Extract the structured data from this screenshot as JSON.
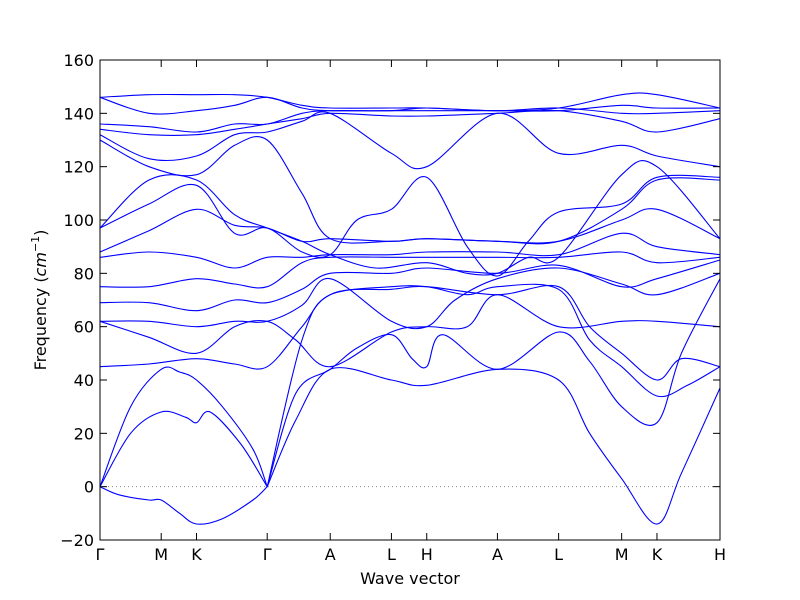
{
  "chart_data": {
    "type": "line",
    "title": "",
    "xlabel": "Wave vector",
    "ylabel": "Frequency (cm⁻¹)",
    "ylabel_main": "Frequency (",
    "ylabel_unit": "cm",
    "ylabel_exp": "−1",
    "ylabel_close": ")",
    "ylim": [
      -20,
      160
    ],
    "yticks": [
      -20,
      0,
      20,
      40,
      60,
      80,
      100,
      120,
      140,
      160
    ],
    "ytick_labels": [
      "−20",
      "0",
      "20",
      "40",
      "60",
      "80",
      "100",
      "120",
      "140",
      "160"
    ],
    "x_ticks": [
      {
        "label": "Γ",
        "x": 0.0
      },
      {
        "label": "M",
        "x": 1.0
      },
      {
        "label": "K",
        "x": 1.577
      },
      {
        "label": "Γ",
        "x": 2.732
      },
      {
        "label": "A",
        "x": 3.762
      },
      {
        "label": "L",
        "x": 4.762
      },
      {
        "label": "H",
        "x": 5.339
      },
      {
        "label": "A",
        "x": 6.494
      },
      {
        "label": "L",
        "x": 7.494
      },
      {
        "label": "M",
        "x": 8.524
      },
      {
        "label": "K",
        "x": 9.101
      },
      {
        "label": "H",
        "x": 10.131
      }
    ],
    "xlim": [
      0,
      10.131
    ],
    "zero_line": {
      "y": 0,
      "style": "dotted",
      "color": "#888888"
    },
    "line_color": "#0000ff",
    "grid": false,
    "legend": "none",
    "series": [
      {
        "values": [
          [
            0,
            0
          ],
          [
            0.3,
            -3
          ],
          [
            0.8,
            -5
          ],
          [
            1.0,
            -5
          ],
          [
            1.3,
            -10
          ],
          [
            1.577,
            -14
          ],
          [
            2.0,
            -12
          ],
          [
            2.5,
            -5
          ],
          [
            2.732,
            0
          ]
        ]
      },
      {
        "values": [
          [
            0,
            0
          ],
          [
            0.5,
            20
          ],
          [
            1.0,
            28
          ],
          [
            1.4,
            26
          ],
          [
            1.577,
            24
          ],
          [
            1.8,
            28
          ],
          [
            2.3,
            16
          ],
          [
            2.732,
            0
          ]
        ]
      },
      {
        "values": [
          [
            0,
            0
          ],
          [
            0.5,
            30
          ],
          [
            1.0,
            44
          ],
          [
            1.3,
            43
          ],
          [
            1.577,
            40
          ],
          [
            2.0,
            30
          ],
          [
            2.5,
            14
          ],
          [
            2.732,
            0
          ]
        ]
      },
      {
        "values": [
          [
            2.732,
            0
          ],
          [
            3.2,
            25
          ],
          [
            3.762,
            44
          ],
          [
            4.762,
            40
          ],
          [
            5.339,
            38
          ],
          [
            6.494,
            44
          ],
          [
            7.494,
            40
          ],
          [
            8.0,
            20
          ],
          [
            8.524,
            3
          ],
          [
            9.101,
            -14
          ],
          [
            9.5,
            5
          ],
          [
            10.131,
            37
          ]
        ]
      },
      {
        "values": [
          [
            2.732,
            0
          ],
          [
            3.2,
            35
          ],
          [
            3.762,
            44
          ],
          [
            4.2,
            52
          ],
          [
            4.762,
            57
          ],
          [
            5.1,
            48
          ],
          [
            5.339,
            45
          ],
          [
            5.6,
            57
          ],
          [
            6.494,
            44
          ],
          [
            7.494,
            58
          ],
          [
            8.0,
            47
          ],
          [
            8.524,
            30
          ],
          [
            9.101,
            24
          ],
          [
            9.5,
            50
          ],
          [
            10.131,
            78
          ]
        ]
      },
      {
        "values": [
          [
            2.732,
            0
          ],
          [
            3.3,
            55
          ],
          [
            3.762,
            72
          ],
          [
            4.762,
            74
          ],
          [
            5.339,
            75
          ],
          [
            6.494,
            72
          ],
          [
            7.494,
            75
          ],
          [
            8.0,
            60
          ],
          [
            8.524,
            50
          ],
          [
            9.101,
            40
          ],
          [
            9.5,
            48
          ],
          [
            10.131,
            45
          ]
        ]
      },
      {
        "values": [
          [
            0,
            45
          ],
          [
            0.8,
            46
          ],
          [
            1.577,
            48
          ],
          [
            2.2,
            46
          ],
          [
            2.732,
            45
          ],
          [
            3.3,
            60
          ],
          [
            3.762,
            72
          ],
          [
            4.762,
            75
          ],
          [
            5.339,
            75
          ],
          [
            6.0,
            72
          ],
          [
            6.494,
            75
          ],
          [
            7.494,
            74
          ],
          [
            8.0,
            55
          ],
          [
            8.524,
            45
          ],
          [
            9.101,
            34
          ],
          [
            9.6,
            38
          ],
          [
            10.131,
            45
          ]
        ]
      },
      {
        "values": [
          [
            0,
            62
          ],
          [
            0.8,
            56
          ],
          [
            1.577,
            50
          ],
          [
            2.2,
            60
          ],
          [
            2.732,
            62
          ],
          [
            3.2,
            55
          ],
          [
            3.762,
            45
          ],
          [
            4.762,
            58
          ],
          [
            5.339,
            60
          ],
          [
            6.0,
            60
          ],
          [
            6.494,
            72
          ],
          [
            7.494,
            60
          ],
          [
            8.524,
            62
          ],
          [
            9.101,
            62
          ],
          [
            10.131,
            60
          ]
        ]
      },
      {
        "values": [
          [
            0,
            62
          ],
          [
            0.8,
            62
          ],
          [
            1.577,
            60
          ],
          [
            2.2,
            62
          ],
          [
            2.732,
            62
          ],
          [
            3.3,
            68
          ],
          [
            3.762,
            78
          ],
          [
            4.762,
            62
          ],
          [
            5.339,
            60
          ],
          [
            5.8,
            70
          ],
          [
            6.494,
            78
          ],
          [
            7.494,
            82
          ],
          [
            8.524,
            76
          ],
          [
            9.101,
            72
          ],
          [
            10.131,
            80
          ]
        ]
      },
      {
        "values": [
          [
            0,
            69
          ],
          [
            0.8,
            69
          ],
          [
            1.577,
            66
          ],
          [
            2.2,
            70
          ],
          [
            2.732,
            69
          ],
          [
            3.3,
            74
          ],
          [
            3.762,
            80
          ],
          [
            4.762,
            80
          ],
          [
            5.339,
            82
          ],
          [
            6.494,
            80
          ],
          [
            7.494,
            83
          ],
          [
            8.524,
            75
          ],
          [
            9.101,
            78
          ],
          [
            10.131,
            85
          ]
        ]
      },
      {
        "values": [
          [
            0,
            75
          ],
          [
            0.8,
            75
          ],
          [
            1.577,
            78
          ],
          [
            2.2,
            76
          ],
          [
            2.732,
            75
          ],
          [
            3.3,
            84
          ],
          [
            3.762,
            86
          ],
          [
            4.762,
            86
          ],
          [
            5.339,
            86
          ],
          [
            6.494,
            86
          ],
          [
            7.494,
            86
          ],
          [
            8.524,
            88
          ],
          [
            9.101,
            84
          ],
          [
            10.131,
            86
          ]
        ]
      },
      {
        "values": [
          [
            0,
            86
          ],
          [
            0.8,
            88
          ],
          [
            1.577,
            86
          ],
          [
            2.2,
            82
          ],
          [
            2.732,
            86
          ],
          [
            3.3,
            86
          ],
          [
            3.762,
            87
          ],
          [
            4.762,
            87
          ],
          [
            5.339,
            88
          ],
          [
            6.494,
            88
          ],
          [
            7.494,
            87
          ],
          [
            8.524,
            95
          ],
          [
            9.101,
            90
          ],
          [
            10.131,
            87
          ]
        ]
      },
      {
        "values": [
          [
            0,
            88
          ],
          [
            0.8,
            96
          ],
          [
            1.577,
            104
          ],
          [
            2.2,
            98
          ],
          [
            2.732,
            97
          ],
          [
            3.3,
            92
          ],
          [
            3.762,
            93
          ],
          [
            4.762,
            92
          ],
          [
            5.339,
            93
          ],
          [
            6.494,
            92
          ],
          [
            7.494,
            92
          ],
          [
            8.524,
            100
          ],
          [
            9.101,
            104
          ],
          [
            10.131,
            93
          ]
        ]
      },
      {
        "values": [
          [
            0,
            97
          ],
          [
            0.8,
            106
          ],
          [
            1.577,
            113
          ],
          [
            2.2,
            95
          ],
          [
            2.732,
            97
          ],
          [
            3.3,
            88
          ],
          [
            3.762,
            87
          ],
          [
            4.2,
            100
          ],
          [
            4.762,
            104
          ],
          [
            5.339,
            116
          ],
          [
            6.0,
            90
          ],
          [
            6.494,
            79
          ],
          [
            7.0,
            92
          ],
          [
            7.494,
            103
          ],
          [
            8.524,
            106
          ],
          [
            9.101,
            116
          ],
          [
            10.131,
            116
          ]
        ]
      },
      {
        "values": [
          [
            0,
            97
          ],
          [
            0.8,
            115
          ],
          [
            1.577,
            115
          ],
          [
            2.2,
            102
          ],
          [
            2.732,
            97
          ],
          [
            3.3,
            92
          ],
          [
            3.762,
            87
          ],
          [
            4.5,
            82
          ],
          [
            5.339,
            84
          ],
          [
            6.0,
            80
          ],
          [
            6.494,
            80
          ],
          [
            7.0,
            86
          ],
          [
            7.494,
            86
          ],
          [
            8.524,
            117
          ],
          [
            9.101,
            120
          ],
          [
            10.131,
            93
          ]
        ]
      },
      {
        "values": [
          [
            0,
            130
          ],
          [
            0.8,
            120
          ],
          [
            1.577,
            117
          ],
          [
            2.2,
            128
          ],
          [
            2.732,
            130
          ],
          [
            3.3,
            110
          ],
          [
            3.762,
            93
          ],
          [
            4.762,
            92
          ],
          [
            5.339,
            93
          ],
          [
            6.494,
            92
          ],
          [
            7.494,
            92
          ],
          [
            8.524,
            104
          ],
          [
            9.101,
            115
          ],
          [
            10.131,
            115
          ]
        ]
      },
      {
        "values": [
          [
            0,
            132
          ],
          [
            0.8,
            123
          ],
          [
            1.577,
            124
          ],
          [
            2.2,
            132
          ],
          [
            2.732,
            133
          ],
          [
            3.3,
            137
          ],
          [
            3.762,
            140
          ],
          [
            4.762,
            125
          ],
          [
            5.339,
            120
          ],
          [
            6.494,
            140
          ],
          [
            7.494,
            125
          ],
          [
            8.524,
            128
          ],
          [
            9.101,
            124
          ],
          [
            10.131,
            120
          ]
        ]
      },
      {
        "values": [
          [
            0,
            134
          ],
          [
            0.8,
            132
          ],
          [
            1.577,
            132
          ],
          [
            2.2,
            134
          ],
          [
            2.732,
            136
          ],
          [
            3.3,
            138
          ],
          [
            3.762,
            140
          ],
          [
            4.762,
            139
          ],
          [
            5.339,
            139
          ],
          [
            6.494,
            140
          ],
          [
            7.494,
            141
          ],
          [
            8.524,
            137
          ],
          [
            9.101,
            133
          ],
          [
            10.131,
            138
          ]
        ]
      },
      {
        "values": [
          [
            0,
            136
          ],
          [
            0.8,
            135
          ],
          [
            1.577,
            133
          ],
          [
            2.2,
            136
          ],
          [
            2.732,
            136
          ],
          [
            3.3,
            140
          ],
          [
            3.762,
            141
          ],
          [
            4.762,
            141
          ],
          [
            5.339,
            142
          ],
          [
            6.494,
            141
          ],
          [
            7.494,
            142
          ],
          [
            8.524,
            140
          ],
          [
            9.101,
            140
          ],
          [
            10.131,
            141
          ]
        ]
      },
      {
        "values": [
          [
            0,
            146
          ],
          [
            0.8,
            140
          ],
          [
            1.577,
            141
          ],
          [
            2.2,
            143
          ],
          [
            2.732,
            146
          ],
          [
            3.3,
            142
          ],
          [
            3.762,
            141
          ],
          [
            4.762,
            141
          ],
          [
            5.339,
            141
          ],
          [
            6.494,
            141
          ],
          [
            7.494,
            141
          ],
          [
            8.524,
            143
          ],
          [
            9.101,
            142
          ],
          [
            10.131,
            142
          ]
        ]
      },
      {
        "values": [
          [
            0,
            146
          ],
          [
            0.8,
            147
          ],
          [
            1.577,
            147
          ],
          [
            2.2,
            147
          ],
          [
            2.732,
            146
          ],
          [
            3.3,
            143
          ],
          [
            3.762,
            142
          ],
          [
            4.762,
            142
          ],
          [
            5.339,
            142
          ],
          [
            6.494,
            141
          ],
          [
            7.494,
            142
          ],
          [
            8.524,
            147
          ],
          [
            9.101,
            147
          ],
          [
            10.131,
            142
          ]
        ]
      }
    ]
  }
}
